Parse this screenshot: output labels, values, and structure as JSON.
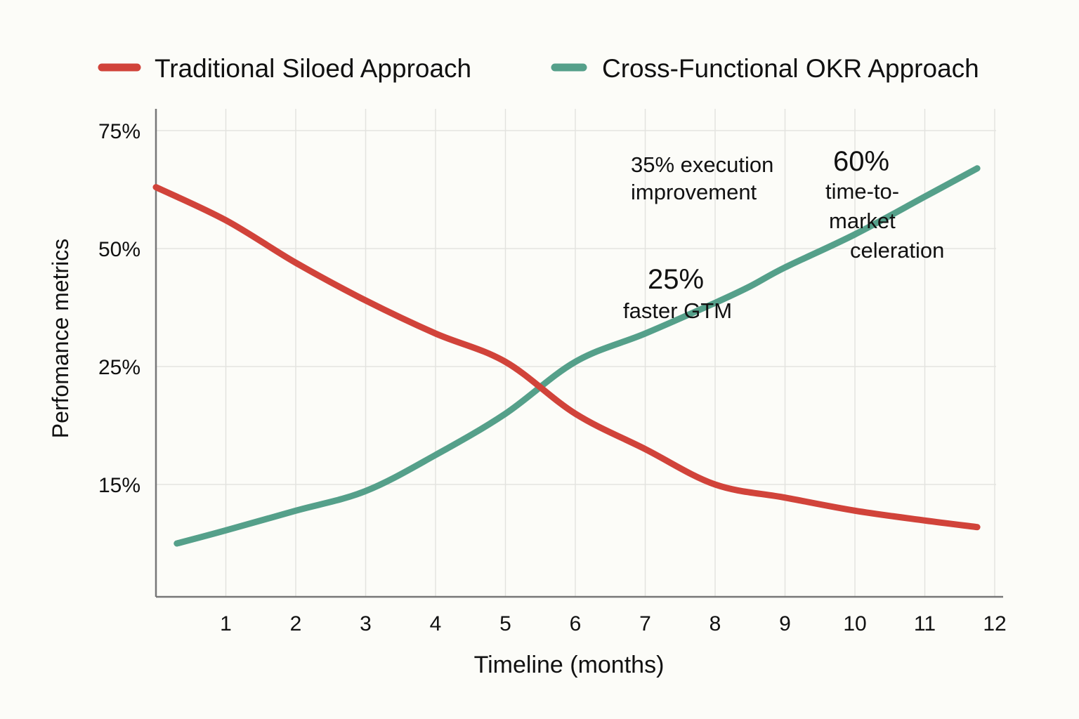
{
  "chart_data": {
    "type": "line",
    "title": "",
    "xlabel": "Timeline (months)",
    "ylabel": "Perfomance metrics",
    "x_ticks": [
      "1",
      "2",
      "3",
      "4",
      "5",
      "6",
      "7",
      "8",
      "9",
      "10",
      "11",
      "12"
    ],
    "y_ticks": [
      "15%",
      "25%",
      "50%",
      "75%"
    ],
    "y_tick_values": [
      15,
      25,
      50,
      75
    ],
    "xlim": [
      0,
      12
    ],
    "grid": true,
    "legend_position": "top",
    "series": [
      {
        "name": "Traditional Siloed Approach",
        "color": "#d1433a",
        "x": [
          0,
          1,
          2,
          3,
          4,
          5,
          6,
          7,
          8,
          9,
          10,
          11,
          11.75
        ],
        "y": [
          63,
          56,
          47,
          39,
          32,
          26,
          21,
          18,
          15,
          13,
          11,
          9.5,
          8.5
        ]
      },
      {
        "name": "Cross-Functional OKR Approach",
        "color": "#55a08a",
        "x": [
          0.3,
          1,
          2,
          3,
          4,
          5,
          6,
          7,
          8,
          8.5,
          9,
          10,
          11,
          11.75
        ],
        "y": [
          6,
          8,
          11,
          14,
          17.5,
          21,
          26,
          32,
          38.5,
          42,
          46,
          53,
          61,
          67
        ]
      }
    ],
    "annotations": [
      {
        "id": "note-35",
        "lines": [
          "35% execution",
          "improvement"
        ]
      },
      {
        "id": "note-60",
        "headline": "60%",
        "lines": [
          "time-to-",
          "market",
          "celeration"
        ]
      },
      {
        "id": "note-25",
        "headline": "25%",
        "lines": [
          "faster GTM"
        ]
      }
    ]
  }
}
